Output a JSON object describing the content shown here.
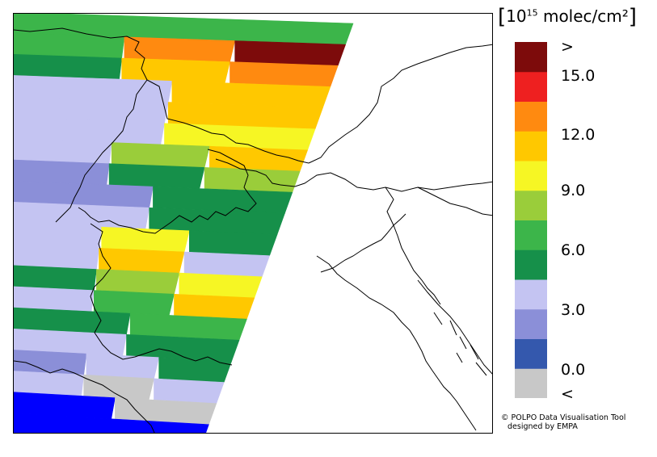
{
  "legend": {
    "unit_open": "[",
    "unit_prefix": "10",
    "unit_exp": "15",
    "unit_text": " molec/cm²",
    "unit_close": "]",
    "bins": [
      {
        "lower": null,
        "upper": 0.0,
        "color": "#c8c8c8"
      },
      {
        "lower": 0.0,
        "upper": 1.5,
        "color": "#3458ad"
      },
      {
        "lower": 1.5,
        "upper": 3.0,
        "color": "#8b8fd8"
      },
      {
        "lower": 3.0,
        "upper": 4.5,
        "color": "#c4c4f2"
      },
      {
        "lower": 4.5,
        "upper": 6.0,
        "color": "#16904a"
      },
      {
        "lower": 6.0,
        "upper": 7.5,
        "color": "#3cb54a"
      },
      {
        "lower": 7.5,
        "upper": 9.0,
        "color": "#9acd3a"
      },
      {
        "lower": 9.0,
        "upper": 10.5,
        "color": "#f6f624"
      },
      {
        "lower": 10.5,
        "upper": 12.0,
        "color": "#ffc800"
      },
      {
        "lower": 12.0,
        "upper": 13.5,
        "color": "#ff8a10"
      },
      {
        "lower": 13.5,
        "upper": 15.0,
        "color": "#ee2020"
      },
      {
        "lower": 15.0,
        "upper": null,
        "color": "#7d0b0b"
      }
    ],
    "labels": [
      {
        "text": ">",
        "key": "gt"
      },
      {
        "text": "15.0",
        "key": "v15"
      },
      {
        "text": "12.0",
        "key": "v12"
      },
      {
        "text": "9.0",
        "key": "v9"
      },
      {
        "text": "6.0",
        "key": "v6"
      },
      {
        "text": "3.0",
        "key": "v3"
      },
      {
        "text": "0.0",
        "key": "v0"
      },
      {
        "text": "<",
        "key": "lt"
      }
    ]
  },
  "credit": {
    "symbol": "©",
    "line1": "POLPO Data Visualisation Tool",
    "line2": "designed by EMPA"
  },
  "swath": {
    "rows": [
      {
        "color": "#3cb54a",
        "segments": [
          {
            "color": "#3cb54a"
          }
        ]
      },
      {
        "color": "#3cb54a",
        "segments": [
          {
            "color": "#3cb54a"
          },
          {
            "color": "#ff8a10"
          },
          {
            "color": "#7d0b0b"
          }
        ]
      },
      {
        "color": "#16904a",
        "segments": [
          {
            "color": "#16904a"
          },
          {
            "color": "#ffc800"
          },
          {
            "color": "#ff8a10"
          }
        ]
      },
      {
        "color": "#c4c4f2",
        "segments": [
          {
            "color": "#c4c4f2"
          },
          {
            "color": "#ffc800"
          }
        ]
      },
      {
        "color": "#c4c4f2",
        "segments": [
          {
            "color": "#c4c4f2"
          },
          {
            "color": "#ffc800"
          }
        ]
      },
      {
        "color": "#c4c4f2",
        "segments": [
          {
            "color": "#c4c4f2"
          },
          {
            "color": "#f6f624"
          }
        ]
      },
      {
        "color": "#c4c4f2",
        "segments": [
          {
            "color": "#c4c4f2"
          },
          {
            "color": "#9acd3a"
          },
          {
            "color": "#ffc800"
          }
        ]
      },
      {
        "color": "#8b8fd8",
        "segments": [
          {
            "color": "#8b8fd8"
          },
          {
            "color": "#16904a"
          },
          {
            "color": "#9acd3a"
          }
        ]
      },
      {
        "color": "#8b8fd8",
        "segments": [
          {
            "color": "#8b8fd8"
          },
          {
            "color": "#16904a"
          }
        ]
      },
      {
        "color": "#c4c4f2",
        "segments": [
          {
            "color": "#c4c4f2"
          },
          {
            "color": "#16904a"
          }
        ]
      },
      {
        "color": "#c4c4f2",
        "segments": [
          {
            "color": "#c4c4f2"
          },
          {
            "color": "#f6f624"
          },
          {
            "color": "#16904a"
          }
        ]
      },
      {
        "color": "#c4c4f2",
        "segments": [
          {
            "color": "#c4c4f2"
          },
          {
            "color": "#ffc800"
          },
          {
            "color": "#c4c4f2"
          }
        ]
      },
      {
        "color": "#16904a",
        "segments": [
          {
            "color": "#16904a"
          },
          {
            "color": "#9acd3a"
          },
          {
            "color": "#f6f624"
          }
        ]
      },
      {
        "color": "#c4c4f2",
        "segments": [
          {
            "color": "#c4c4f2"
          },
          {
            "color": "#3cb54a"
          },
          {
            "color": "#ffc800"
          }
        ]
      },
      {
        "color": "#16904a",
        "segments": [
          {
            "color": "#16904a"
          },
          {
            "color": "#3cb54a"
          }
        ]
      },
      {
        "color": "#c4c4f2",
        "segments": [
          {
            "color": "#c4c4f2"
          },
          {
            "color": "#16904a"
          }
        ]
      },
      {
        "color": "#c4c4f2",
        "segments": [
          {
            "color": "#8b8fd8"
          },
          {
            "color": "#c4c4f2"
          },
          {
            "color": "#16904a"
          }
        ]
      },
      {
        "color": "#c8c8c8",
        "segments": [
          {
            "color": "#c4c4f2"
          },
          {
            "color": "#c8c8c8"
          },
          {
            "color": "#c4c4f2"
          }
        ]
      },
      {
        "color": "#0000ff",
        "segments": [
          {
            "color": "#0000ff"
          },
          {
            "color": "#c8c8c8"
          }
        ]
      },
      {
        "color": "#0000ff",
        "segments": [
          {
            "color": "#0000ff"
          }
        ]
      }
    ]
  }
}
